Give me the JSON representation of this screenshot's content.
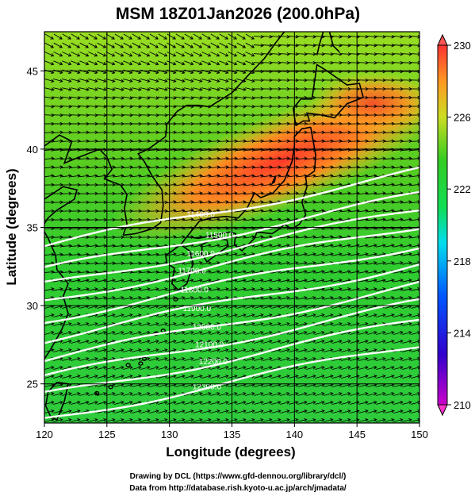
{
  "title": "MSM 18Z01Jan2026 (200.0hPa)",
  "xlabel": "Longitude (degrees)",
  "ylabel": "Latitude  (degrees)",
  "credits": [
    "Drawing by DCL (https://www.gfd-dennou.org/library/dcl/)",
    "Data from http://database.rish.kyoto-u.ac.jp/arch/jmadata/"
  ],
  "chart_data": {
    "type": "heatmap",
    "variable": "temperature with wind vectors and geopotential height contours",
    "xlim": [
      120,
      150
    ],
    "ylim": [
      22.5,
      47.5
    ],
    "x_ticks": [
      "120",
      "125",
      "130",
      "135",
      "140",
      "145",
      "150"
    ],
    "y_ticks": [
      "25",
      "30",
      "35",
      "40",
      "45"
    ],
    "colorbar": {
      "range": [
        210,
        230
      ],
      "tick_labels": [
        "230",
        "226",
        "222",
        "218",
        "214",
        "210"
      ],
      "colors": [
        "#cc00cc",
        "#0000cc",
        "#0066ff",
        "#00ccee",
        "#11dd66",
        "#33cc33",
        "#ccdd22",
        "#ff9922",
        "#ff3333",
        "#ff5555"
      ]
    },
    "height_contours": [
      {
        "label": "11400.0",
        "lon": 132.5,
        "lat": 35.8
      },
      {
        "label": "11500.0",
        "lon": 134.0,
        "lat": 34.5
      },
      {
        "label": "11600.0",
        "lon": 132.5,
        "lat": 33.3
      },
      {
        "label": "11700.0",
        "lon": 131.8,
        "lat": 32.2
      },
      {
        "label": "11800.0",
        "lon": 132.0,
        "lat": 31.0
      },
      {
        "label": "11900.0",
        "lon": 132.2,
        "lat": 29.8
      },
      {
        "label": "12000.0",
        "lon": 133.0,
        "lat": 28.6
      },
      {
        "label": "12100.0",
        "lon": 133.2,
        "lat": 27.5
      },
      {
        "label": "12200.0",
        "lon": 133.5,
        "lat": 26.4
      },
      {
        "label": "12300.0",
        "lon": 133.0,
        "lat": 24.8
      }
    ]
  }
}
